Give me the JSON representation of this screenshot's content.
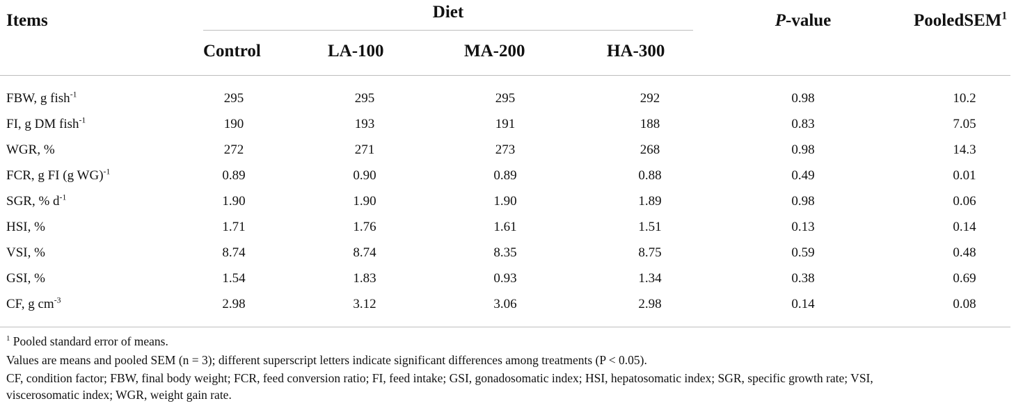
{
  "table": {
    "header": {
      "items": "Items",
      "diet": "Diet",
      "p_italic": "P",
      "p_rest": "-value",
      "pooled": "PooledSEM",
      "pooled_sup": "1",
      "groups": [
        "Control",
        "LA-100",
        "MA-200",
        "HA-300"
      ]
    },
    "rows": [
      {
        "label": "FBW, g fish",
        "sup": "-1",
        "suffix": "",
        "values": [
          "295",
          "295",
          "295",
          "292",
          "0.98",
          "10.2"
        ]
      },
      {
        "label": "FI, g DM fish",
        "sup": "-1",
        "suffix": "",
        "values": [
          "190",
          "193",
          "191",
          "188",
          "0.83",
          "7.05"
        ]
      },
      {
        "label": "WGR, %",
        "sup": "",
        "suffix": "",
        "values": [
          "272",
          "271",
          "273",
          "268",
          "0.98",
          "14.3"
        ]
      },
      {
        "label": "FCR, g FI (g WG)",
        "sup": "-1",
        "suffix": "",
        "values": [
          "0.89",
          "0.90",
          "0.89",
          "0.88",
          "0.49",
          "0.01"
        ]
      },
      {
        "label": "SGR, % d",
        "sup": "-1",
        "suffix": "",
        "values": [
          "1.90",
          "1.90",
          "1.90",
          "1.89",
          "0.98",
          "0.06"
        ]
      },
      {
        "label": "HSI, %",
        "sup": "",
        "suffix": "",
        "values": [
          "1.71",
          "1.76",
          "1.61",
          "1.51",
          "0.13",
          "0.14"
        ]
      },
      {
        "label": "VSI, %",
        "sup": "",
        "suffix": "",
        "values": [
          "8.74",
          "8.74",
          "8.35",
          "8.75",
          "0.59",
          "0.48"
        ]
      },
      {
        "label": "GSI, %",
        "sup": "",
        "suffix": "",
        "values": [
          "1.54",
          "1.83",
          "0.93",
          "1.34",
          "0.38",
          "0.69"
        ]
      },
      {
        "label": "CF, g cm",
        "sup": "-3",
        "suffix": "",
        "values": [
          "2.98",
          "3.12",
          "3.06",
          "2.98",
          "0.14",
          "0.08"
        ]
      }
    ],
    "footnotes": {
      "note1_sup": "1",
      "note1": " Pooled standard error of means.",
      "note2": "Values are means and pooled SEM (n = 3); different superscript letters indicate significant differences among treatments (P < 0.05).",
      "note3": "CF, condition factor; FBW, final body weight; FCR, feed conversion ratio; FI, feed intake; GSI, gonadosomatic index; HSI, hepatosomatic index; SGR, specific growth rate; VSI,",
      "note4": "viscerosomatic index; WGR, weight gain rate."
    }
  }
}
